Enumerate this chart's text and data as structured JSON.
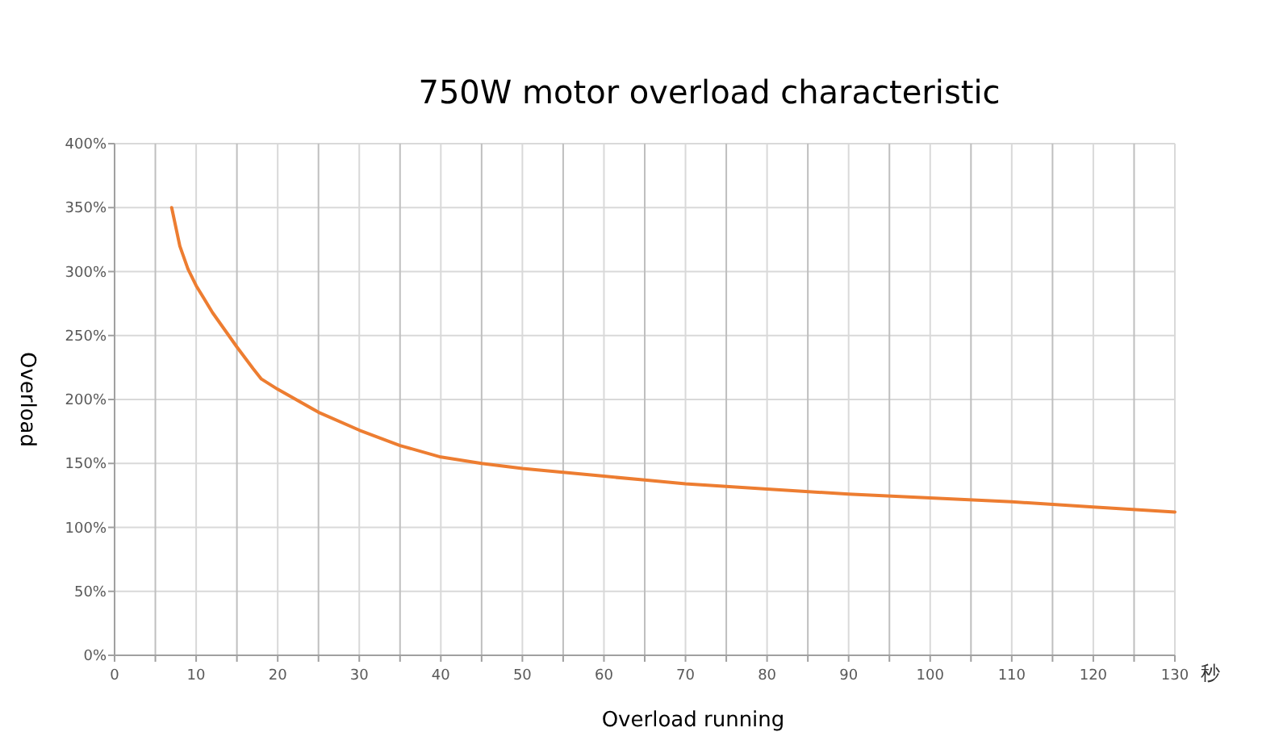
{
  "chart_data": {
    "type": "line",
    "title": "750W motor overload characteristic",
    "xlabel": "Overload running",
    "ylabel": "Overload",
    "annotations": [
      "秒"
    ],
    "x": [
      7,
      8,
      9,
      10,
      12,
      14,
      15,
      17,
      18,
      20,
      25,
      30,
      35,
      40,
      45,
      50,
      55,
      60,
      65,
      70,
      80,
      90,
      100,
      110,
      120,
      130
    ],
    "series": [
      {
        "color": "#ed7d31",
        "values": [
          350,
          320,
          302,
          289,
          268,
          250,
          241,
          224,
          216,
          208,
          190,
          176,
          164,
          155,
          150,
          146,
          143,
          140,
          137,
          134,
          130,
          126,
          123,
          120,
          116,
          112
        ]
      }
    ],
    "xlim": [
      0,
      130
    ],
    "xticks": [
      0,
      {
        "value": 5,
        "label": null
      },
      10,
      {
        "value": 15,
        "label": null
      },
      20,
      {
        "value": 25,
        "label": null
      },
      30,
      {
        "value": 35,
        "label": null
      },
      40,
      {
        "value": 45,
        "label": null
      },
      50,
      {
        "value": 55,
        "label": null
      },
      60,
      {
        "value": 65,
        "label": null
      },
      70,
      {
        "value": 75,
        "label": null
      },
      80,
      {
        "value": 85,
        "label": null
      },
      90,
      {
        "value": 95,
        "label": null
      },
      100,
      {
        "value": 105,
        "label": null
      },
      110,
      {
        "value": 115,
        "label": null
      },
      120,
      {
        "value": 125,
        "label": null
      },
      130
    ],
    "ylim": [
      0,
      400
    ],
    "yticks": [
      {
        "value": 0,
        "label": "0%"
      },
      {
        "value": 50,
        "label": "50%"
      },
      {
        "value": 100,
        "label": "100%"
      },
      {
        "value": 150,
        "label": "150%"
      },
      {
        "value": 200,
        "label": "200%"
      },
      {
        "value": 250,
        "label": "250%"
      },
      {
        "value": 300,
        "label": "300%"
      },
      {
        "value": 350,
        "label": "350%"
      },
      {
        "value": 400,
        "label": "400%"
      }
    ],
    "grid": true,
    "marker": "none",
    "line_style": "solid"
  }
}
